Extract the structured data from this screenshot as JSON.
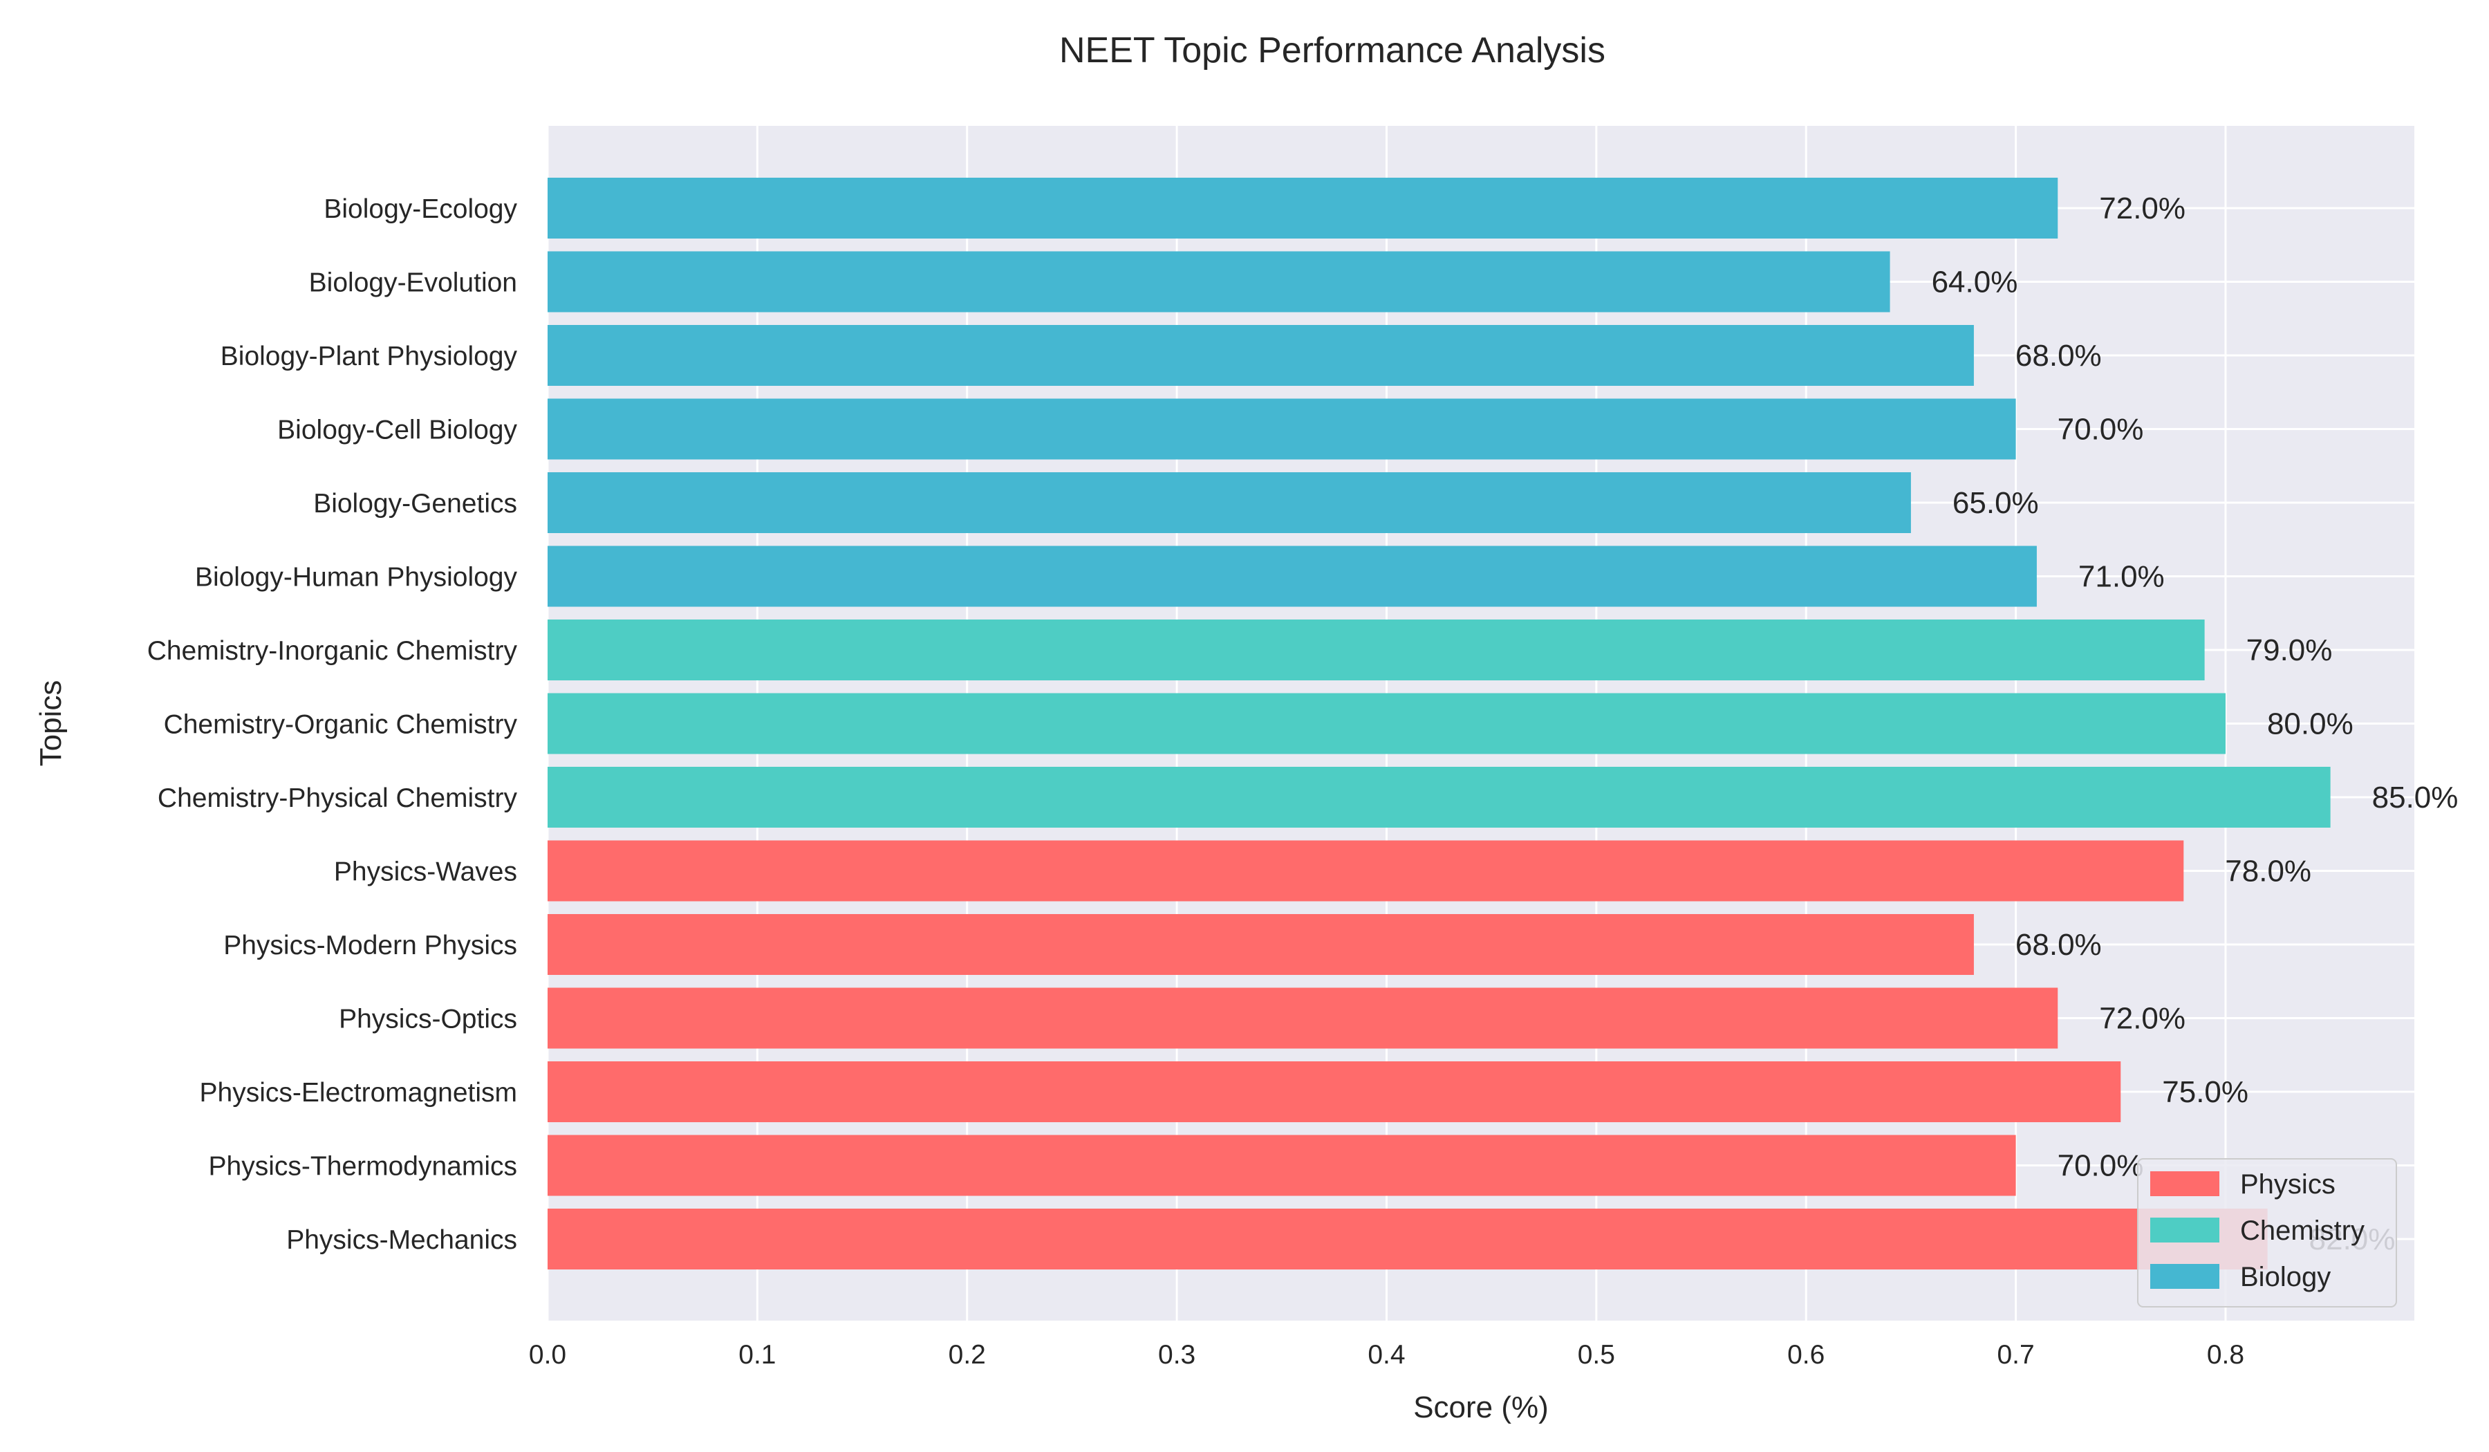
{
  "chart_data": {
    "type": "bar",
    "orientation": "horizontal",
    "title": "NEET Topic Performance Analysis",
    "xlabel": "Score (%)",
    "ylabel": "Topics",
    "xlim": [
      0,
      0.89
    ],
    "xticks": [
      "0.0",
      "0.1",
      "0.2",
      "0.3",
      "0.4",
      "0.5",
      "0.6",
      "0.7",
      "0.8"
    ],
    "grid": true,
    "legend_position": "bottom-right",
    "colors": {
      "Physics": "#ff6b6b",
      "Chemistry": "#4ecdc4",
      "Biology": "#45b7d1"
    },
    "legend": [
      {
        "name": "Physics",
        "color": "#ff6b6b"
      },
      {
        "name": "Chemistry",
        "color": "#4ecdc4"
      },
      {
        "name": "Biology",
        "color": "#45b7d1"
      }
    ],
    "categories": [
      "Physics-Mechanics",
      "Physics-Thermodynamics",
      "Physics-Electromagnetism",
      "Physics-Optics",
      "Physics-Modern Physics",
      "Physics-Waves",
      "Chemistry-Physical Chemistry",
      "Chemistry-Organic Chemistry",
      "Chemistry-Inorganic Chemistry",
      "Biology-Human Physiology",
      "Biology-Genetics",
      "Biology-Cell Biology",
      "Biology-Plant Physiology",
      "Biology-Evolution",
      "Biology-Ecology"
    ],
    "values": [
      0.82,
      0.7,
      0.75,
      0.72,
      0.68,
      0.78,
      0.85,
      0.8,
      0.79,
      0.71,
      0.65,
      0.7,
      0.68,
      0.64,
      0.72
    ],
    "subjects": [
      "Physics",
      "Physics",
      "Physics",
      "Physics",
      "Physics",
      "Physics",
      "Chemistry",
      "Chemistry",
      "Chemistry",
      "Biology",
      "Biology",
      "Biology",
      "Biology",
      "Biology",
      "Biology"
    ],
    "value_labels": [
      "82.0%",
      "70.0%",
      "75.0%",
      "72.0%",
      "68.0%",
      "78.0%",
      "85.0%",
      "80.0%",
      "79.0%",
      "71.0%",
      "65.0%",
      "70.0%",
      "68.0%",
      "64.0%",
      "72.0%"
    ]
  }
}
